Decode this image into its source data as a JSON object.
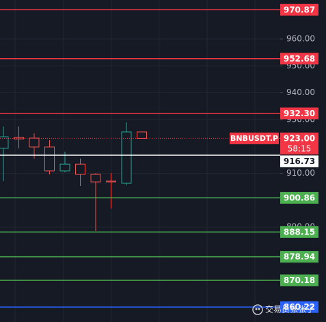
{
  "chart_data": {
    "type": "candlestick",
    "symbol": "BNBUSDT.P",
    "countdown": "58:15",
    "categories": [
      null,
      null,
      null,
      null,
      null,
      null,
      null,
      null,
      null,
      null
    ],
    "series": [
      {
        "open": [
          919.3,
          923.3,
          923.1,
          919.8,
          910.9,
          913.4,
          909.6,
          907.1,
          906.3,
          925.4
        ],
        "high": [
          927.4,
          927.4,
          924.9,
          922.3,
          918.0,
          915.5,
          910.1,
          910.1,
          929.0,
          925.4
        ],
        "low": [
          907.1,
          919.3,
          915.5,
          909.6,
          910.4,
          905.3,
          888.5,
          896.9,
          905.5,
          923.0
        ],
        "close": [
          923.6,
          922.8,
          919.8,
          910.9,
          913.4,
          909.6,
          906.8,
          906.8,
          925.4,
          923.0
        ],
        "up_color": "#26a69a",
        "down_color": "#ef5350"
      }
    ],
    "ylim": [
      854.66,
      974.5
    ],
    "yticks": [
      {
        "value": 960,
        "label": "960.00"
      },
      {
        "value": 950,
        "label": "950.00"
      },
      {
        "value": 940,
        "label": "940.00"
      },
      {
        "value": 930,
        "label": "930.00"
      },
      {
        "value": 910,
        "label": "910.00"
      },
      {
        "value": 890,
        "label": "890.00"
      }
    ],
    "grid": true,
    "last_price": {
      "value": 923,
      "label": "923.00",
      "color": "#f23645"
    },
    "levels": [
      {
        "value": 970.87,
        "label": "970.87",
        "color": "#f23645"
      },
      {
        "value": 952.68,
        "label": "952.68",
        "color": "#f23645"
      },
      {
        "value": 932.3,
        "label": "932.30",
        "color": "#f23645"
      },
      {
        "value": 916.73,
        "label": "916.73",
        "color": "#ffffff"
      },
      {
        "value": 900.86,
        "label": "900.86",
        "color": "#4caf50"
      },
      {
        "value": 888.15,
        "label": "888.15",
        "color": "#4caf50"
      },
      {
        "value": 878.94,
        "label": "878.94",
        "color": "#4caf50"
      },
      {
        "value": 870.18,
        "label": "870.18",
        "color": "#4caf50"
      },
      {
        "value": 860.22,
        "label": "860.22",
        "color": "#2962ff"
      }
    ]
  },
  "watermark": "交易员张张子"
}
